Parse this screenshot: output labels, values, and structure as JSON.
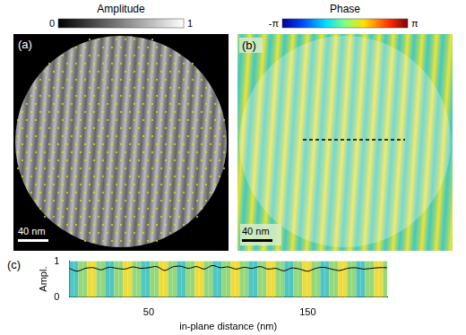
{
  "panels": {
    "a": {
      "label": "(a)",
      "colorbar": {
        "title": "Amplitude",
        "range": [
          0,
          1
        ],
        "ticks": [
          0,
          1
        ]
      },
      "scale_bar": "40 nm"
    },
    "b": {
      "label": "(b)",
      "colorbar": {
        "title": "Phase",
        "range": [
          -3.14159,
          3.14159
        ],
        "ticks": [
          {
            "value": -3.14159,
            "label": "-π"
          },
          {
            "value": 3.14159,
            "label": "π"
          }
        ]
      },
      "scale_bar": "40 nm"
    },
    "c": {
      "label": "(c)"
    }
  },
  "chart_data": {
    "type": "line",
    "x_label": "in-plane distance (nm)",
    "y_label": "Ampl.",
    "x": [
      0,
      5,
      10,
      15,
      20,
      25,
      30,
      35,
      40,
      45,
      50,
      55,
      60,
      65,
      70,
      75,
      80,
      85,
      90,
      95,
      100,
      105,
      110,
      115,
      120,
      125,
      130,
      135,
      140,
      145,
      150,
      155,
      160,
      165,
      170,
      175,
      180,
      185,
      190,
      195,
      200
    ],
    "values": [
      0.8,
      0.72,
      0.8,
      0.82,
      0.76,
      0.83,
      0.8,
      0.78,
      0.84,
      0.8,
      0.82,
      0.85,
      0.74,
      0.84,
      0.86,
      0.8,
      0.85,
      0.78,
      0.88,
      0.82,
      0.84,
      0.78,
      0.83,
      0.8,
      0.85,
      0.78,
      0.8,
      0.73,
      0.81,
      0.78,
      0.72,
      0.8,
      0.83,
      0.78,
      0.74,
      0.8,
      0.82,
      0.78,
      0.8,
      0.82,
      0.82
    ],
    "color": "#000000",
    "xlim": [
      0,
      200
    ],
    "xticks": [
      50,
      150
    ],
    "ylim": [
      0,
      1
    ],
    "yticks": [
      0,
      1
    ],
    "grid": false
  }
}
